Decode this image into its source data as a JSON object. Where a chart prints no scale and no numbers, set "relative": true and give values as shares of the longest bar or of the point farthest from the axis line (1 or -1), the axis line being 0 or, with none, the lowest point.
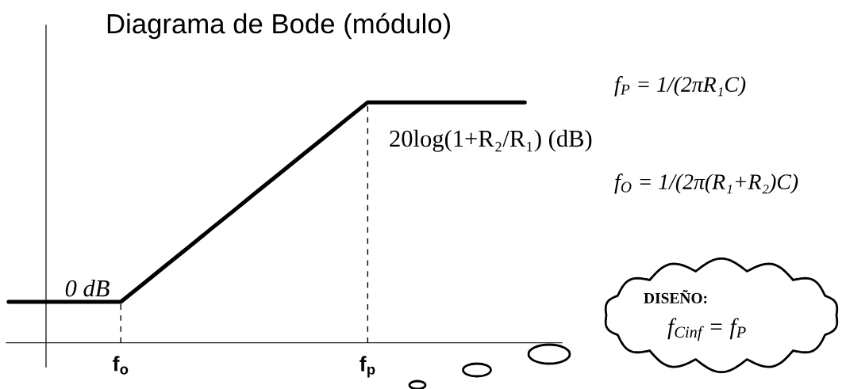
{
  "chart_data": {
    "type": "line",
    "title": "Diagrama de Bode (módulo)",
    "relative": true,
    "categories": [
      null,
      null,
      null,
      null,
      null,
      "f$_{o}$",
      null,
      null,
      null,
      null,
      null,
      null,
      null,
      null,
      null,
      null,
      "f$_{p}$",
      null,
      null,
      null,
      null,
      null,
      null,
      null
    ],
    "values": [
      0.17,
      0.17,
      0.17,
      0.17,
      0.17,
      0.17,
      0.245,
      0.321,
      0.396,
      0.472,
      0.547,
      0.623,
      0.698,
      0.774,
      0.849,
      0.925,
      1,
      1,
      1,
      1,
      1,
      1,
      1,
      1
    ],
    "color": "#000000",
    "tick_labels": "x",
    "ref_lines": [
      {
        "axis": "x",
        "value": "f$_{o}$",
        "line_style": "dashed",
        "color": "#000000"
      },
      {
        "axis": "x",
        "value": "f$_{p}$",
        "line_style": "dashed",
        "color": "#000000"
      }
    ],
    "annotations": [
      {
        "text": "0 dB",
        "y": 0.17
      },
      {
        "text": "20log(1+R₂/R₁) (dB)",
        "y": 1
      },
      "f$_{P}$ = 1/(2πR₁C)",
      "f$_{O}$ = 1/(2π(R₁+R₂)C)",
      "DISEÑO:",
      "f$_{Cinf}$ = f$_{P}$"
    ]
  }
}
